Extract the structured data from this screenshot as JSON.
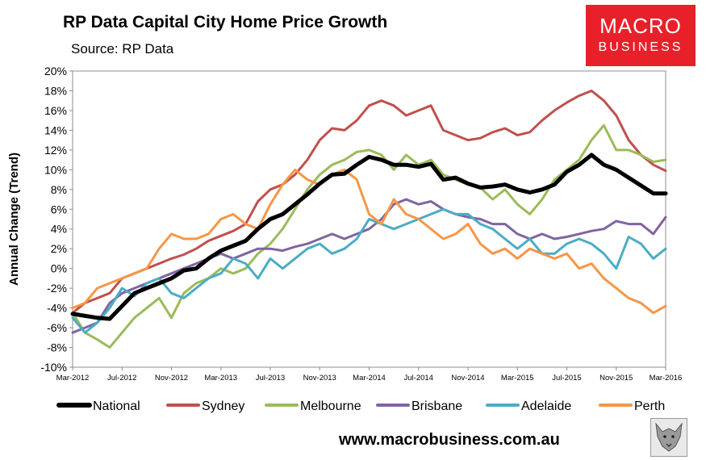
{
  "header": {
    "title": "RP Data Capital City Home Price Growth",
    "subtitle": "Source: RP Data"
  },
  "logo": {
    "line1": "MACRO",
    "line2": "BUSINESS"
  },
  "footer": {
    "url": "www.macrobusiness.com.au"
  },
  "chart_data": {
    "type": "line",
    "ylabel": "Annual Change (Trend)",
    "ylim": [
      -10,
      20
    ],
    "yticks": [
      "-10%",
      "-8%",
      "-6%",
      "-4%",
      "-2%",
      "0%",
      "2%",
      "4%",
      "6%",
      "8%",
      "10%",
      "12%",
      "14%",
      "16%",
      "18%",
      "20%"
    ],
    "xticks": [
      "Mar-2012",
      "Jul-2012",
      "Nov-2012",
      "Mar-2013",
      "Jul-2013",
      "Nov-2013",
      "Mar-2014",
      "Jul-2014",
      "Nov-2014",
      "Mar-2015",
      "Jul-2015",
      "Nov-2015",
      "Mar-2016"
    ],
    "x": [
      "Mar-2012",
      "Apr-2012",
      "May-2012",
      "Jun-2012",
      "Jul-2012",
      "Aug-2012",
      "Sep-2012",
      "Oct-2012",
      "Nov-2012",
      "Dec-2012",
      "Jan-2013",
      "Feb-2013",
      "Mar-2013",
      "Apr-2013",
      "May-2013",
      "Jun-2013",
      "Jul-2013",
      "Aug-2013",
      "Sep-2013",
      "Oct-2013",
      "Nov-2013",
      "Dec-2013",
      "Jan-2014",
      "Feb-2014",
      "Mar-2014",
      "Apr-2014",
      "May-2014",
      "Jun-2014",
      "Jul-2014",
      "Aug-2014",
      "Sep-2014",
      "Oct-2014",
      "Nov-2014",
      "Dec-2014",
      "Jan-2015",
      "Feb-2015",
      "Mar-2015",
      "Apr-2015",
      "May-2015",
      "Jun-2015",
      "Jul-2015",
      "Aug-2015",
      "Sep-2015",
      "Oct-2015",
      "Nov-2015",
      "Dec-2015",
      "Jan-2016",
      "Feb-2016",
      "Mar-2016"
    ],
    "grid": false,
    "legend": "bottom",
    "series": [
      {
        "name": "National",
        "color": "#000000",
        "width": 5,
        "values": [
          -4.6,
          -4.8,
          -5.0,
          -5.1,
          -3.8,
          -2.5,
          -2.0,
          -1.5,
          -1.0,
          -0.2,
          0.0,
          1.0,
          1.8,
          2.3,
          2.8,
          4.0,
          5.0,
          5.5,
          6.5,
          7.5,
          8.6,
          9.5,
          9.6,
          10.5,
          11.3,
          11.0,
          10.5,
          10.5,
          10.3,
          10.6,
          9.0,
          9.2,
          8.6,
          8.2,
          8.3,
          8.5,
          8.0,
          7.7,
          8.0,
          8.5,
          9.8,
          10.5,
          11.5,
          10.5,
          10.0,
          9.2,
          8.4,
          7.6,
          7.6
        ]
      },
      {
        "name": "Sydney",
        "color": "#c0504d",
        "width": 3,
        "values": [
          -4.5,
          -3.5,
          -3.0,
          -2.5,
          -1.0,
          -0.5,
          0.0,
          0.5,
          1.0,
          1.4,
          2.0,
          2.8,
          3.3,
          3.8,
          4.5,
          6.8,
          8.0,
          8.5,
          9.5,
          11.0,
          13.0,
          14.2,
          14.0,
          15.0,
          16.5,
          17.0,
          16.5,
          15.5,
          16.0,
          16.5,
          14.0,
          13.5,
          13.0,
          13.2,
          13.8,
          14.2,
          13.5,
          13.8,
          15.0,
          16.0,
          16.8,
          17.5,
          18.0,
          17.0,
          15.5,
          13.0,
          11.5,
          10.5,
          9.9
        ]
      },
      {
        "name": "Melbourne",
        "color": "#9bbb59",
        "width": 3,
        "values": [
          -4.5,
          -6.5,
          -7.2,
          -8.0,
          -6.5,
          -5.0,
          -4.0,
          -3.0,
          -5.0,
          -2.5,
          -1.5,
          -1.0,
          0.0,
          -0.5,
          0.0,
          1.5,
          2.5,
          4.0,
          6.0,
          8.0,
          9.5,
          10.5,
          11.0,
          11.8,
          12.0,
          11.5,
          10.0,
          11.5,
          10.5,
          11.0,
          9.5,
          9.0,
          8.5,
          8.2,
          7.0,
          8.0,
          6.5,
          5.5,
          7.0,
          9.0,
          10.0,
          11.0,
          13.0,
          14.5,
          12.0,
          12.0,
          11.5,
          10.8,
          11.0
        ]
      },
      {
        "name": "Brisbane",
        "color": "#8064a2",
        "width": 3,
        "values": [
          -6.5,
          -6.0,
          -5.5,
          -3.5,
          -2.5,
          -2.0,
          -1.5,
          -1.0,
          -0.5,
          0.0,
          0.5,
          1.0,
          1.5,
          1.0,
          1.5,
          2.0,
          2.0,
          1.8,
          2.2,
          2.5,
          3.0,
          3.5,
          3.0,
          3.5,
          4.0,
          5.0,
          6.5,
          7.0,
          6.5,
          6.8,
          6.0,
          5.5,
          5.2,
          5.0,
          4.5,
          4.5,
          3.5,
          3.0,
          3.5,
          3.0,
          3.2,
          3.5,
          3.8,
          4.0,
          4.8,
          4.5,
          4.5,
          3.5,
          5.2
        ]
      },
      {
        "name": "Adelaide",
        "color": "#4bacc6",
        "width": 3,
        "values": [
          -5.0,
          -6.5,
          -5.5,
          -4.0,
          -2.0,
          -2.8,
          -1.5,
          -1.0,
          -2.5,
          -3.0,
          -2.0,
          -1.0,
          -0.5,
          1.0,
          0.5,
          -1.0,
          1.0,
          0.0,
          1.0,
          2.0,
          2.5,
          1.5,
          2.0,
          3.0,
          5.0,
          4.5,
          4.0,
          4.5,
          5.0,
          5.5,
          6.0,
          5.5,
          5.5,
          4.5,
          4.0,
          3.0,
          2.0,
          3.0,
          1.5,
          1.5,
          2.5,
          3.0,
          2.5,
          1.5,
          0.0,
          3.2,
          2.5,
          1.0,
          2.0
        ]
      },
      {
        "name": "Perth",
        "color": "#f79646",
        "width": 3,
        "values": [
          -4.0,
          -3.5,
          -2.0,
          -1.5,
          -1.0,
          -0.5,
          0.0,
          2.0,
          3.5,
          3.0,
          3.0,
          3.5,
          5.0,
          5.5,
          4.5,
          4.0,
          6.5,
          8.5,
          10.0,
          9.0,
          8.5,
          9.5,
          10.0,
          9.0,
          5.5,
          4.5,
          7.0,
          5.5,
          5.0,
          4.0,
          3.0,
          3.5,
          4.5,
          2.5,
          1.5,
          2.0,
          1.0,
          2.0,
          1.5,
          1.0,
          1.5,
          0.0,
          0.5,
          -1.0,
          -2.0,
          -3.0,
          -3.5,
          -4.5,
          -3.8
        ]
      }
    ]
  }
}
